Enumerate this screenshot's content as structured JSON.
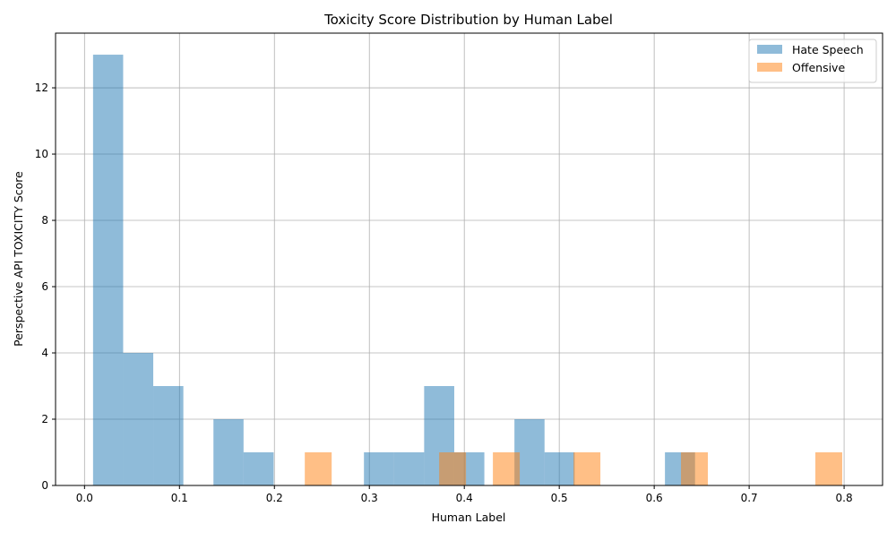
{
  "chart_data": {
    "type": "bar",
    "subtype": "overlapping-histogram",
    "title": "Toxicity Score Distribution by Human Label",
    "xlabel": "Human Label",
    "ylabel": "Perspective API TOXICITY Score",
    "xlim": [
      -0.0305,
      0.8405
    ],
    "ylim": [
      0,
      13.65
    ],
    "xticks": [
      0.0,
      0.1,
      0.2,
      0.3,
      0.4,
      0.5,
      0.6,
      0.7,
      0.8
    ],
    "xtick_labels": [
      "0.0",
      "0.1",
      "0.2",
      "0.3",
      "0.4",
      "0.5",
      "0.6",
      "0.7",
      "0.8"
    ],
    "yticks": [
      0,
      2,
      4,
      6,
      8,
      10,
      12
    ],
    "ytick_labels": [
      "0",
      "2",
      "4",
      "6",
      "8",
      "10",
      "12"
    ],
    "grid": true,
    "legend_position": "top-right",
    "series": [
      {
        "name": "Hate Speech",
        "color": "#1f77b4",
        "alpha": 0.5,
        "bin_edges": [
          0.009,
          0.0407,
          0.0724,
          0.1041,
          0.1358,
          0.1675,
          0.1992,
          0.2309,
          0.2626,
          0.2943,
          0.326,
          0.3577,
          0.3894,
          0.4211,
          0.4528,
          0.4845,
          0.5162,
          0.5479,
          0.5796,
          0.6113,
          0.643
        ],
        "counts": [
          13,
          4,
          3,
          0,
          2,
          1,
          0,
          0,
          0,
          1,
          1,
          3,
          1,
          0,
          2,
          1,
          0,
          0,
          0,
          1
        ]
      },
      {
        "name": "Offensive",
        "color": "#ff7f0e",
        "alpha": 0.5,
        "bin_edges": [
          0.232,
          0.2603,
          0.2886,
          0.3169,
          0.3452,
          0.3735,
          0.4018,
          0.4301,
          0.4584,
          0.4867,
          0.515,
          0.5433,
          0.5716,
          0.5999,
          0.6282,
          0.6565,
          0.6848,
          0.7131,
          0.7414,
          0.7697,
          0.798
        ],
        "counts": [
          1,
          0,
          0,
          0,
          0,
          1,
          0,
          1,
          0,
          0,
          1,
          0,
          0,
          0,
          1,
          0,
          0,
          0,
          0,
          1
        ]
      }
    ]
  }
}
